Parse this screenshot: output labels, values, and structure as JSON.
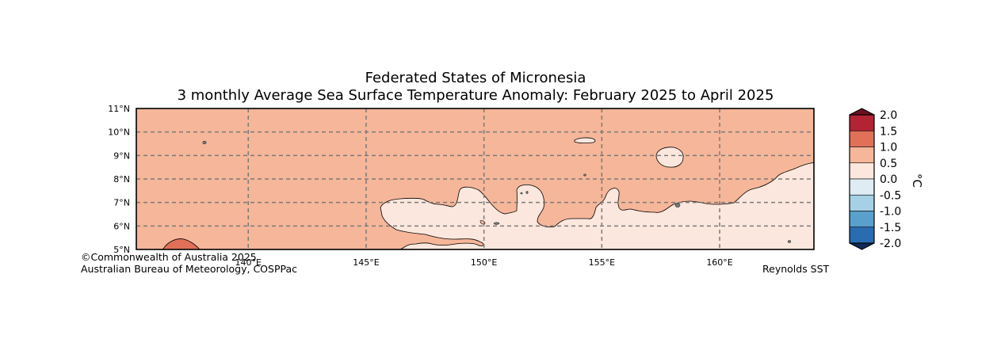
{
  "title": {
    "line1": "Federated States of Micronesia",
    "line2": "3 monthly Average Sea Surface Temperature Anomaly: February 2025 to April 2025"
  },
  "map": {
    "lat_range": [
      5,
      11
    ],
    "lon_range": [
      135.25,
      164
    ],
    "lat_ticks": [
      {
        "value": 11,
        "label": "11°N"
      },
      {
        "value": 10,
        "label": "10°N"
      },
      {
        "value": 9,
        "label": "9°N"
      },
      {
        "value": 8,
        "label": "8°N"
      },
      {
        "value": 7,
        "label": "7°N"
      },
      {
        "value": 6,
        "label": "6°N"
      },
      {
        "value": 5,
        "label": "5°N"
      }
    ],
    "lon_ticks": [
      {
        "value": 140,
        "label": "140°E"
      },
      {
        "value": 145,
        "label": "145°E"
      },
      {
        "value": 150,
        "label": "150°E"
      },
      {
        "value": 155,
        "label": "155°E"
      },
      {
        "value": 160,
        "label": "160°E"
      }
    ],
    "background_anomaly_range": "0.5 to 1.0",
    "features": [
      {
        "name": "anomaly-warm-patch-sw",
        "range": "1.0 to 1.5",
        "color": "#e07058"
      },
      {
        "name": "anomaly-cool-region-south",
        "range": "0.0 to 0.5",
        "color": "#fbe7dd"
      },
      {
        "name": "anomaly-cool-patch-north",
        "range": "0.0 to 0.5",
        "color": "#fbe7dd"
      }
    ]
  },
  "colorbar": {
    "unit": "°C",
    "levels": [
      {
        "label": "2.0",
        "color": "#6b1020"
      },
      {
        "label": "1.5",
        "color": "#b22333"
      },
      {
        "label": "1.0",
        "color": "#e07058"
      },
      {
        "label": "0.5",
        "color": "#f6b699"
      },
      {
        "label": "0.0",
        "color": "#fbe7dd"
      },
      {
        "label": "-0.5",
        "color": "#e0ecf4"
      },
      {
        "label": "-1.0",
        "color": "#a6d0e6"
      },
      {
        "label": "-1.5",
        "color": "#5aa0cc"
      },
      {
        "label": "-2.0",
        "color": "#2a6cb0"
      }
    ],
    "under_color": "#0f2a5a"
  },
  "credits": {
    "copyright": "©Commonwealth of Australia 2025",
    "agency": "Australian Bureau of Meteorology, COSPPac",
    "dataset": "Reynolds SST"
  }
}
